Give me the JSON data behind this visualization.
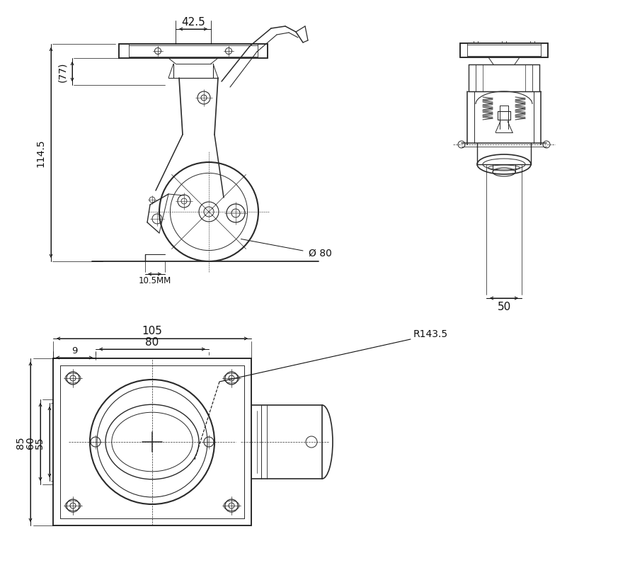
{
  "background_color": "#ffffff",
  "line_color": "#2a2a2a",
  "dim_color": "#111111",
  "annotations": {
    "top_width": "42.5",
    "side_height1": "(77)",
    "side_height2": "114.5",
    "wheel_gap": "10.5MM",
    "wheel_dia": "Ø 80",
    "front_width": "50",
    "bottom_length1": "105",
    "bottom_length2": "80",
    "bottom_offset": "9",
    "bottom_height1": "85",
    "bottom_height2": "60",
    "bottom_height3": "55",
    "radius": "R143.5"
  }
}
